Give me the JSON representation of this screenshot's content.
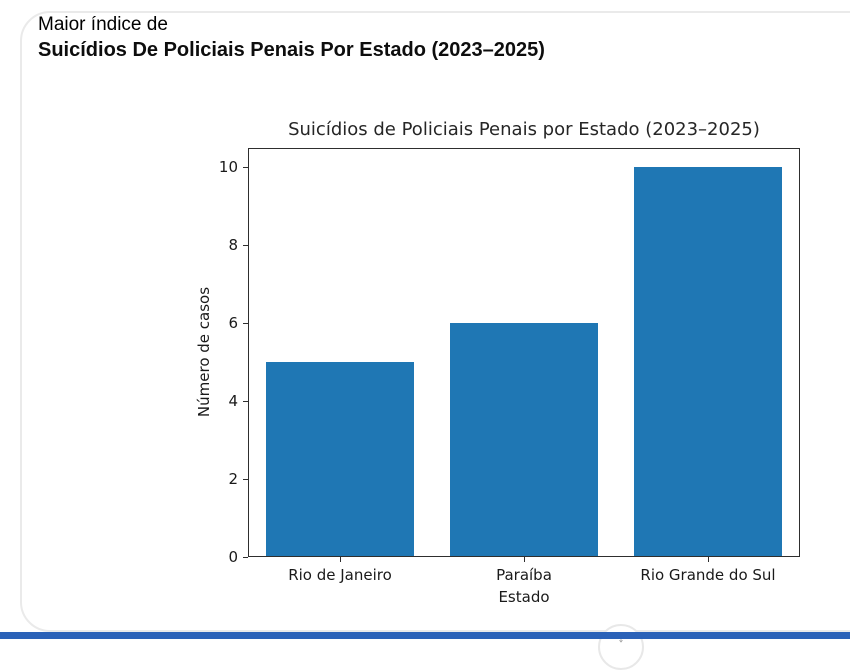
{
  "header": {
    "eyebrow": "Maior índice de",
    "title": "Suicídios De Policiais Penais Por Estado (2023–2025)"
  },
  "chart_data": {
    "type": "bar",
    "title": "Suicídios de Policiais Penais por Estado (2023–2025)",
    "categories": [
      "Rio de Janeiro",
      "Paraíba",
      "Rio Grande do Sul"
    ],
    "values": [
      5,
      6,
      10
    ],
    "xlabel": "Estado",
    "ylabel": "Número de casos",
    "ylim": [
      0,
      10.5
    ],
    "yticks": [
      0,
      2,
      4,
      6,
      8,
      10
    ],
    "grid": false,
    "legend": false,
    "bar_color": "#1f77b4",
    "bar_width_fraction": 0.8
  },
  "colors": {
    "bottom_accent_bar": "#2b62b8",
    "card_border": "#eaeaea",
    "axis": "#2e2e2e"
  },
  "floating_button": {
    "glyph": "↓"
  }
}
